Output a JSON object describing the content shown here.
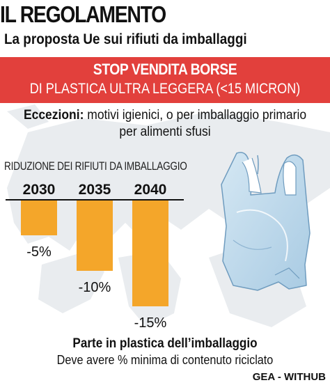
{
  "header": {
    "title": "IL REGOLAMENTO",
    "subtitle": "La proposta Ue sui rifiuti da imballaggi"
  },
  "banner": {
    "line1": "STOP VENDITA BORSE",
    "line2": "DI PLASTICA ULTRA LEGGERA (<15 MICRON)",
    "color": "#e2403c"
  },
  "exceptions": {
    "label": "Eccezioni:",
    "text_line1": " motivi igienici, o per imballaggio primario",
    "text_line2": "per alimenti sfusi"
  },
  "chart_data": {
    "type": "bar",
    "title": "RIDUZIONE DEI RIFIUTI DA IMBALLAGGIO",
    "categories": [
      "2030",
      "2035",
      "2040"
    ],
    "values": [
      -5,
      -10,
      -15
    ],
    "value_labels": [
      "-5%",
      "-10%",
      "-15%"
    ],
    "ylim": [
      -15,
      0
    ],
    "bar_color": "#f4a62a",
    "grid": false,
    "legend": "none"
  },
  "footer": {
    "title": "Parte in plastica dell’imballaggio",
    "subtitle": "Deve avere % minima di contenuto riciclato"
  },
  "credit": "GEA - WITHUB",
  "illustration": {
    "icon": "plastic-bag-icon",
    "bag_color": "#b9d6ea"
  }
}
